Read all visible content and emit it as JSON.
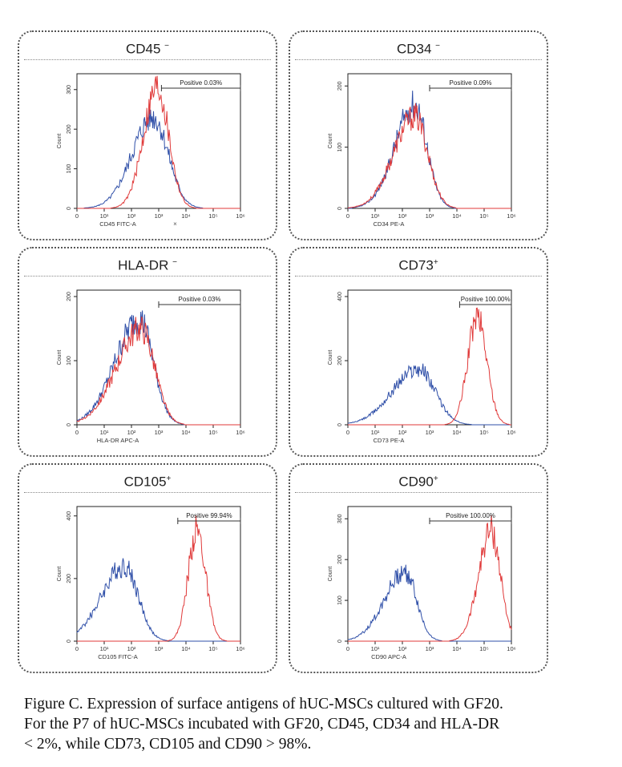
{
  "chart_data": [
    {
      "type": "line",
      "title": "CD45",
      "marker": "−",
      "xlabel": "CD45 FITC-A",
      "ylabel": "Count",
      "x_ticks": [
        "0",
        "10¹",
        "10²",
        "10³",
        "10⁴",
        "10⁵",
        "10⁶"
      ],
      "y_ticks": [
        0,
        100,
        200,
        300
      ],
      "ylim": [
        0,
        340
      ],
      "gate_label": "Positive  0.03%",
      "gate_range": [
        3.1,
        6
      ],
      "extra_mark": "×",
      "series": [
        {
          "color": "#2f4fa8",
          "peak_x": 2.8,
          "width": 0.55,
          "height": 230,
          "skew": 1.4
        },
        {
          "color": "#e03a3a",
          "peak_x": 2.95,
          "width": 0.42,
          "height": 305,
          "skew": 1.2
        }
      ]
    },
    {
      "type": "line",
      "title": "CD34",
      "marker": "−",
      "xlabel": "CD34 PE-A",
      "ylabel": "Count",
      "x_ticks": [
        "0",
        "10¹",
        "10²",
        "10³",
        "10⁴",
        "10⁵",
        "10⁶"
      ],
      "y_ticks": [
        0,
        100,
        200
      ],
      "ylim": [
        0,
        220
      ],
      "gate_label": "Positive  0.09%",
      "gate_range": [
        3.0,
        6
      ],
      "series": [
        {
          "color": "#2f4fa8",
          "peak_x": 2.45,
          "width": 0.45,
          "height": 170,
          "skew": 1.6
        },
        {
          "color": "#e03a3a",
          "peak_x": 2.45,
          "width": 0.48,
          "height": 150,
          "skew": 1.6
        }
      ]
    },
    {
      "type": "line",
      "title": "HLA-DR",
      "marker": "−",
      "xlabel": "HLA-DR APC-A",
      "ylabel": "Count",
      "x_ticks": [
        "0",
        "10¹",
        "10²",
        "10³",
        "10⁴",
        "10⁵",
        "10⁶"
      ],
      "y_ticks": [
        0,
        100,
        200
      ],
      "ylim": [
        0,
        210
      ],
      "gate_label": "Positive  0.03%",
      "gate_range": [
        3.0,
        6
      ],
      "series": [
        {
          "color": "#2f4fa8",
          "peak_x": 2.3,
          "width": 0.5,
          "height": 165,
          "skew": 1.8
        },
        {
          "color": "#e03a3a",
          "peak_x": 2.35,
          "width": 0.5,
          "height": 150,
          "skew": 1.8
        }
      ]
    },
    {
      "type": "line",
      "title": "CD73",
      "marker": "+",
      "xlabel": "CD73 PE-A",
      "ylabel": "Count",
      "x_ticks": [
        "0",
        "10¹",
        "10²",
        "10³",
        "10⁴",
        "10⁵",
        "10⁶"
      ],
      "y_ticks": [
        0,
        200,
        400
      ],
      "ylim": [
        0,
        420
      ],
      "gate_label": "Positive  100.00%",
      "gate_range": [
        4.1,
        6
      ],
      "series": [
        {
          "color": "#2f4fa8",
          "peak_x": 2.6,
          "width": 0.6,
          "height": 175,
          "skew": 1.6
        },
        {
          "color": "#e03a3a",
          "peak_x": 4.75,
          "width": 0.35,
          "height": 335,
          "skew": 1.0
        }
      ]
    },
    {
      "type": "line",
      "title": "CD105",
      "marker": "+",
      "xlabel": "CD105 FITC-A",
      "ylabel": "Count",
      "x_ticks": [
        "0",
        "10¹",
        "10²",
        "10³",
        "10⁴",
        "10⁵",
        "10⁶"
      ],
      "y_ticks": [
        0,
        200,
        400
      ],
      "ylim": [
        0,
        430
      ],
      "gate_label": "Positive  99.94%",
      "gate_range": [
        3.7,
        6
      ],
      "series": [
        {
          "color": "#2f4fa8",
          "peak_x": 1.75,
          "width": 0.5,
          "height": 240,
          "skew": 1.7
        },
        {
          "color": "#e03a3a",
          "peak_x": 4.4,
          "width": 0.32,
          "height": 355,
          "skew": 1.0
        }
      ]
    },
    {
      "type": "line",
      "title": "CD90",
      "marker": "+",
      "xlabel": "CD90 APC-A",
      "ylabel": "Count",
      "x_ticks": [
        "0",
        "10¹",
        "10²",
        "10³",
        "10⁴",
        "10⁵",
        "10⁶"
      ],
      "y_ticks": [
        0,
        100,
        200,
        300
      ],
      "ylim": [
        0,
        330
      ],
      "gate_label": "Positive  100.00%",
      "gate_range": [
        3.0,
        6
      ],
      "series": [
        {
          "color": "#2f4fa8",
          "peak_x": 2.1,
          "width": 0.42,
          "height": 170,
          "skew": 1.8
        },
        {
          "color": "#e03a3a",
          "peak_x": 5.25,
          "width": 0.35,
          "height": 270,
          "skew": 1.3
        }
      ]
    }
  ],
  "caption": {
    "line1": "Figure C. Expression of surface antigens of hUC-MSCs cultured with GF20.",
    "line2": "For the P7 of hUC-MSCs incubated with GF20, CD45, CD34 and HLA-DR",
    "line3": "< 2%, while CD73, CD105 and CD90 > 98%."
  }
}
